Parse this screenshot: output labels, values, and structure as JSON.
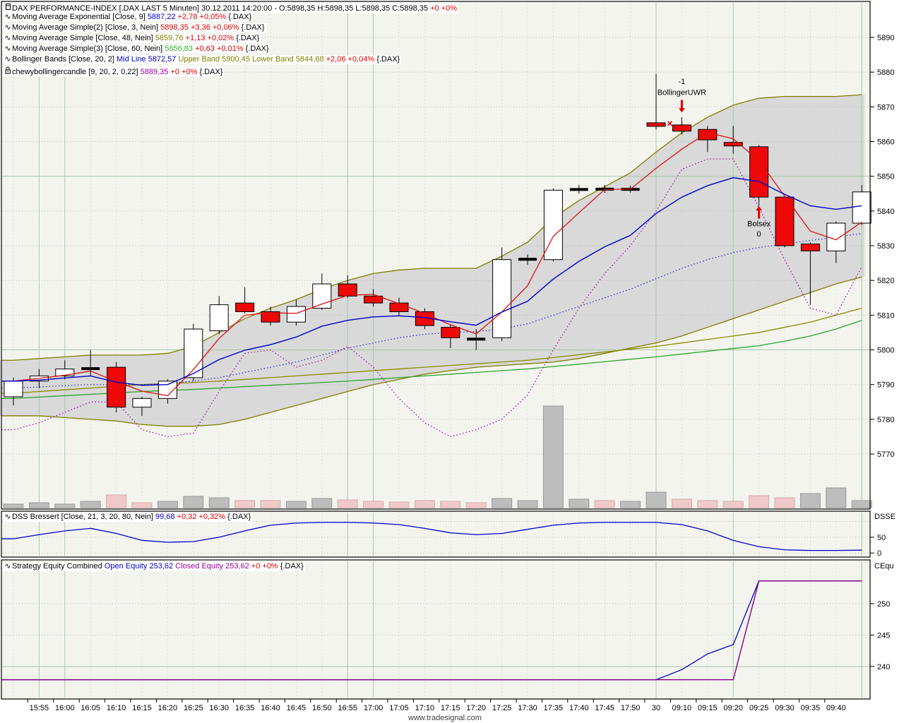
{
  "watermark": "www.tradesignal.com",
  "palette": {
    "black": "#000000",
    "blue": "#0000cc",
    "red": "#dd0000",
    "olive": "#808000",
    "green": "#2db52d",
    "purple": "#990099",
    "bg": "#f4f4ef",
    "axis_bg": "#ffffff",
    "gray_band": "#d9d9d9",
    "band_line": "#7e7e00",
    "sma48": "#8a8a00",
    "sma60": "#2aa52a",
    "ema9": "#0000cc",
    "sma3": "#dd1111",
    "bb_mid_dot": "#2222cc",
    "chewy_dot": "#a000a0",
    "candle_red": "#ee0808",
    "vol_gray": "#bdbdbd",
    "vol_gray_edge": "#9a9a9a",
    "vol_pink": "#f0caca",
    "vol_pink_edge": "#d8a8a8",
    "grid_dot": "#b8b8b8",
    "grid_bar_dot": "#cfcfcf",
    "grid_green": "#a8c8a8",
    "dss_line": "#0000cc",
    "eq_open": "#0000cc",
    "eq_closed": "#800080"
  },
  "legends": {
    "main": [
      {
        "icon": "chart-window-icon",
        "segments": [
          {
            "t": "DAX PERFORMANCE-INDEX [.DAX LAST 5 Minuten] 30.12.2011 14:20:00 - O:5898,35 H:5898,35 L:5898,35 C:5898,35 ",
            "c": "black"
          },
          {
            "t": "+0 +0%",
            "c": "red"
          }
        ]
      },
      {
        "icon": "wave-icon",
        "segments": [
          {
            "t": "Moving Average Exponential [Close, 9] ",
            "c": "black"
          },
          {
            "t": "5887,22 ",
            "c": "blue"
          },
          {
            "t": "+2,78 +0,05% ",
            "c": "red"
          },
          {
            "t": "{.DAX}",
            "c": "black"
          }
        ]
      },
      {
        "icon": "wave-icon",
        "segments": [
          {
            "t": "Moving Average Simple(2) [Close, 3, Nein] ",
            "c": "black"
          },
          {
            "t": "5898,35 ",
            "c": "red"
          },
          {
            "t": "+3,36 +0,06% ",
            "c": "red"
          },
          {
            "t": "{.DAX}",
            "c": "black"
          }
        ]
      },
      {
        "icon": "wave-icon",
        "segments": [
          {
            "t": "Moving Average Simple [Close, 48, Nein] ",
            "c": "black"
          },
          {
            "t": "5859,76 ",
            "c": "olive"
          },
          {
            "t": "+1,13 +0,02% ",
            "c": "red"
          },
          {
            "t": "{.DAX}",
            "c": "black"
          }
        ]
      },
      {
        "icon": "wave-icon",
        "segments": [
          {
            "t": "Moving Average Simple(3) [Close, 60, Nein] ",
            "c": "black"
          },
          {
            "t": "5856,83 ",
            "c": "green"
          },
          {
            "t": "+0,63 +0,01% ",
            "c": "red"
          },
          {
            "t": "{.DAX}",
            "c": "black"
          }
        ]
      },
      {
        "icon": "wave-icon",
        "segments": [
          {
            "t": "Bollinger Bands [Close, 20, 2] ",
            "c": "black"
          },
          {
            "t": "Mid Line 5872,57 ",
            "c": "blue"
          },
          {
            "t": "Upper Band 5900,45 ",
            "c": "olive"
          },
          {
            "t": "Lower Band 5844,68 ",
            "c": "olive"
          },
          {
            "t": "+2,06 +0,04% ",
            "c": "red"
          },
          {
            "t": "{.DAX}",
            "c": "black"
          }
        ]
      },
      {
        "icon": "lock-icon",
        "segments": [
          {
            "t": "chewybollingercandle [9, 20, 2, 0,22] ",
            "c": "black"
          },
          {
            "t": "5889,35 ",
            "c": "purple"
          },
          {
            "t": "+0 +0% ",
            "c": "red"
          },
          {
            "t": "{.DAX}",
            "c": "black"
          }
        ]
      }
    ],
    "dss": {
      "icon": "wave-icon",
      "segments": [
        {
          "t": "DSS Bressert [Close, 21, 3, 20, 80, Nein] ",
          "c": "black"
        },
        {
          "t": "99,68 ",
          "c": "blue"
        },
        {
          "t": "+0,32 +0,32% ",
          "c": "red"
        },
        {
          "t": "{.DAX}",
          "c": "black"
        }
      ]
    },
    "equity": {
      "icon": "wave-icon",
      "segments": [
        {
          "t": "Strategy Equity Combined ",
          "c": "black"
        },
        {
          "t": "Open Equity 253,62 ",
          "c": "blue"
        },
        {
          "t": "Closed Equity 253,62 ",
          "c": "purple"
        },
        {
          "t": "+0 +0% ",
          "c": "red"
        },
        {
          "t": "{.DAX}",
          "c": "black"
        }
      ]
    }
  },
  "axes": {
    "price_ticks": [
      5890,
      5880,
      5870,
      5860,
      5850,
      5840,
      5830,
      5820,
      5810,
      5800,
      5790,
      5780,
      5770
    ],
    "dss": {
      "name": "DSSE",
      "tick_values": [
        50,
        0
      ]
    },
    "equity": {
      "name": "CEqu",
      "tick_values": [
        250,
        245,
        240
      ]
    },
    "x_labels": [
      "15:55",
      "16:00",
      "16:05",
      "16:10",
      "16:15",
      "16:20",
      "16:25",
      "16:30",
      "16:35",
      "16:40",
      "16:45",
      "16:50",
      "16:55",
      "17:00",
      "17:05",
      "17:10",
      "17:15",
      "17:20",
      "17:25",
      "17:30",
      "17:35",
      "17:40",
      "17:45",
      "17:50",
      "30",
      "09:10",
      "09:15",
      "09:20",
      "09:25",
      "09:30",
      "09:35",
      "09:40"
    ]
  },
  "chart_data": {
    "type": "candlestick",
    "title": "DAX PERFORMANCE-INDEX .DAX 5 Minuten",
    "ylim_main": [
      5754,
      5899
    ],
    "session_break_bar": 25,
    "bars": [
      [
        "15:50",
        5786.5,
        5792,
        5784,
        5791,
        "w"
      ],
      [
        "15:55",
        5791,
        5794.5,
        5789,
        5792.5,
        "w"
      ],
      [
        "16:00",
        5792.5,
        5797,
        5791.5,
        5794.5,
        "w"
      ],
      [
        "16:05",
        5794.5,
        5800,
        5792.5,
        5794.7,
        "d"
      ],
      [
        "16:10",
        5795,
        5796.5,
        5782,
        5783.5,
        "r"
      ],
      [
        "16:15",
        5783.5,
        5786.5,
        5781,
        5786,
        "w"
      ],
      [
        "16:20",
        5786,
        5791.5,
        5784.5,
        5791,
        "w"
      ],
      [
        "16:25",
        5792,
        5807.5,
        5791,
        5806,
        "w"
      ],
      [
        "16:30",
        5805.5,
        5815.5,
        5804.5,
        5813,
        "w"
      ],
      [
        "16:35",
        5813.5,
        5818,
        5810.5,
        5811,
        "r"
      ],
      [
        "16:40",
        5811,
        5812.5,
        5807,
        5808,
        "r"
      ],
      [
        "16:45",
        5808,
        5814.5,
        5807,
        5812.5,
        "w"
      ],
      [
        "16:50",
        5812,
        5822,
        5811.5,
        5819,
        "w"
      ],
      [
        "16:55",
        5819,
        5821.5,
        5815,
        5815.5,
        "r"
      ],
      [
        "17:00",
        5815.5,
        5817.5,
        5812.5,
        5813.5,
        "r"
      ],
      [
        "17:05",
        5813.5,
        5815,
        5810,
        5811,
        "r"
      ],
      [
        "17:10",
        5811,
        5812,
        5806,
        5807,
        "r"
      ],
      [
        "17:15",
        5806.5,
        5807.5,
        5800.5,
        5803.5,
        "r"
      ],
      [
        "17:20",
        5803,
        5806,
        5800,
        5803.2,
        "d"
      ],
      [
        "17:25",
        5803.5,
        5829.5,
        5802.5,
        5826,
        "w"
      ],
      [
        "17:30",
        5826,
        5827.5,
        5824.5,
        5826.2,
        "d"
      ],
      [
        "17:35",
        5826,
        5846.5,
        5825.5,
        5846,
        "w"
      ],
      [
        "17:40",
        5846.2,
        5847.5,
        5845,
        5846.2,
        "d"
      ],
      [
        "17:45",
        5846.2,
        5847.5,
        5845.2,
        5846.4,
        "d"
      ],
      [
        "17:50",
        5846.2,
        5847.3,
        5845.3,
        5846.3,
        "d"
      ],
      [
        "09:05",
        5865.5,
        5879.5,
        5863.5,
        5864.3,
        "rd"
      ],
      [
        "09:10",
        5864.8,
        5867,
        5862,
        5863,
        "r"
      ],
      [
        "09:15",
        5863.5,
        5864.5,
        5857,
        5860.5,
        "r"
      ],
      [
        "09:20",
        5859.5,
        5864.5,
        5856.5,
        5859,
        "rd"
      ],
      [
        "09:25",
        5858.5,
        5859,
        5841.5,
        5844,
        "r"
      ],
      [
        "09:30",
        5844,
        5844.5,
        5829.5,
        5830,
        "r"
      ],
      [
        "09:35",
        5830.5,
        5831,
        5813,
        5828.5,
        "r"
      ],
      [
        "09:40",
        5828.5,
        5837,
        5825,
        5836.5,
        "w"
      ],
      [
        "09:45",
        5836.5,
        5847.5,
        5836,
        5845.5,
        "w"
      ]
    ],
    "overlays": {
      "sma3_red": [
        5791,
        5791.8,
        5792.7,
        5793.9,
        5790.9,
        5788.1,
        5786.8,
        5794.3,
        5803.3,
        5810,
        5810.7,
        5810.5,
        5813.2,
        5815.7,
        5816,
        5813.3,
        5810.5,
        5807.2,
        5804.6,
        5810.9,
        5818.5,
        5832.7,
        5839.5,
        5846.2,
        5846.3,
        5852.3,
        5857.8,
        5862.6,
        5860.8,
        5854.5,
        5844.3,
        5834.2,
        5831.7,
        5836.8
      ],
      "ema9_blue": [
        5791,
        5791.3,
        5791.9,
        5792.5,
        5790.7,
        5789.8,
        5790,
        5793.2,
        5797.2,
        5799.9,
        5801.5,
        5803.7,
        5806.8,
        5808.5,
        5809.5,
        5809.8,
        5809.3,
        5808.1,
        5807.1,
        5810.9,
        5814,
        5820.4,
        5825.5,
        5829.7,
        5833,
        5839.3,
        5844,
        5847.3,
        5849.6,
        5848.5,
        5844.8,
        5841.5,
        5840.5,
        5841.5
      ],
      "bb_mid_dotted_blue": [
        5789,
        5789.3,
        5789.7,
        5790,
        5790,
        5790,
        5790.3,
        5791,
        5792,
        5793.5,
        5795,
        5796.5,
        5798.5,
        5800.5,
        5802,
        5803.5,
        5804.5,
        5805,
        5805.3,
        5806,
        5807.5,
        5810,
        5812.5,
        5815,
        5817.5,
        5820.5,
        5823.5,
        5826,
        5828,
        5829.5,
        5830.5,
        5831.5,
        5832.5,
        5833.5
      ],
      "bb_upper_olive": [
        5797,
        5797.5,
        5798,
        5798.5,
        5798.5,
        5798.5,
        5799,
        5801,
        5805,
        5809,
        5812,
        5814.5,
        5817.5,
        5820,
        5822,
        5823,
        5823.5,
        5823.5,
        5823.5,
        5827,
        5831,
        5838,
        5843,
        5847,
        5851,
        5857,
        5862.5,
        5867,
        5870.5,
        5872.5,
        5873,
        5873,
        5873,
        5873.5
      ],
      "bb_lower_olive": [
        5781,
        5781,
        5780.5,
        5780,
        5779.5,
        5778.5,
        5778,
        5778,
        5778.5,
        5780,
        5782,
        5784,
        5786,
        5788,
        5790,
        5791.5,
        5793,
        5794,
        5795,
        5795.5,
        5796,
        5796.5,
        5797.5,
        5799,
        5800.5,
        5802,
        5804,
        5806.5,
        5809,
        5811.5,
        5814,
        5816.5,
        5819,
        5821
      ],
      "sma48_olive": [
        5787.5,
        5788,
        5788.5,
        5789,
        5789.5,
        5790,
        5790.3,
        5790.6,
        5791,
        5791.5,
        5792,
        5792.5,
        5793,
        5793.5,
        5794,
        5794.5,
        5795,
        5795.5,
        5796,
        5796.5,
        5797,
        5797.8,
        5798.6,
        5799.4,
        5800.2,
        5801,
        5802,
        5803,
        5804,
        5805,
        5806.5,
        5808,
        5810,
        5812
      ],
      "sma60_green": [
        5786,
        5786.4,
        5786.8,
        5787.2,
        5787.6,
        5788,
        5788.3,
        5788.6,
        5789,
        5789.4,
        5789.8,
        5790.2,
        5790.6,
        5791,
        5791.5,
        5792,
        5792.5,
        5793,
        5793.5,
        5794,
        5794.5,
        5795.2,
        5795.9,
        5796.6,
        5797.3,
        5798,
        5798.8,
        5799.6,
        5800.4,
        5801.2,
        5802.5,
        5804,
        5806,
        5808.5
      ],
      "chewy_dotted_purple": [
        5777,
        5779,
        5782,
        5785,
        5785,
        5777,
        5775,
        5776,
        5788,
        5799,
        5800,
        5795,
        5797,
        5801,
        5795,
        5786,
        5779,
        5775,
        5777,
        5780,
        5787,
        5800,
        5812,
        5822,
        5830,
        5840,
        5852,
        5855,
        5855,
        5841,
        5826,
        5812,
        5810,
        5824
      ]
    },
    "volume": {
      "heights": [
        5,
        7,
        5,
        9,
        18,
        7,
        9,
        16,
        14,
        10,
        10,
        9,
        13,
        11,
        9,
        8,
        10,
        9,
        7,
        13,
        10,
        144,
        12,
        10,
        9,
        22,
        12,
        10,
        9,
        17,
        14,
        20,
        28,
        10
      ],
      "colors": [
        "g",
        "g",
        "g",
        "g",
        "p",
        "p",
        "g",
        "g",
        "g",
        "p",
        "p",
        "g",
        "g",
        "p",
        "p",
        "p",
        "p",
        "p",
        "p",
        "g",
        "g",
        "g",
        "g",
        "p",
        "g",
        "g",
        "p",
        "p",
        "p",
        "p",
        "p",
        "g",
        "g",
        "g"
      ]
    },
    "indicators": {
      "dss_bressert": [
        45,
        58,
        70,
        78,
        62,
        40,
        34,
        36,
        50,
        70,
        88,
        95,
        97,
        97,
        95,
        90,
        78,
        64,
        58,
        62,
        75,
        88,
        95,
        97,
        97,
        97,
        90,
        70,
        40,
        20,
        10,
        8,
        8,
        9
      ],
      "equity_open": [
        237.9,
        237.9,
        237.9,
        237.9,
        237.9,
        237.9,
        237.9,
        237.9,
        237.9,
        237.9,
        237.9,
        237.9,
        237.9,
        237.9,
        237.9,
        237.9,
        237.9,
        237.9,
        237.9,
        237.9,
        237.9,
        237.9,
        237.9,
        237.9,
        237.9,
        237.9,
        239.5,
        242,
        243.5,
        253.62,
        253.62,
        253.62,
        253.62,
        253.62
      ],
      "equity_closed": [
        237.9,
        237.9,
        237.9,
        237.9,
        237.9,
        237.9,
        237.9,
        237.9,
        237.9,
        237.9,
        237.9,
        237.9,
        237.9,
        237.9,
        237.9,
        237.9,
        237.9,
        237.9,
        237.9,
        237.9,
        237.9,
        237.9,
        237.9,
        237.9,
        237.9,
        237.9,
        237.9,
        237.9,
        237.9,
        253.62,
        253.62,
        253.62,
        253.62,
        253.62
      ]
    },
    "gridlines": {
      "h_solid_prices": [
        5850,
        5800
      ],
      "v_solid_bars": [
        1,
        2,
        13,
        14,
        25,
        28,
        33
      ],
      "dss_dotted": [
        100,
        50,
        0
      ],
      "equity_dotted": [
        250,
        245
      ],
      "equity_h_solid": [
        240
      ]
    },
    "annotations": [
      {
        "type": "text",
        "text": "-1",
        "bar": 26,
        "price": 5876.6
      },
      {
        "type": "text",
        "text": "BollingerUWR",
        "bar": 26,
        "price": 5873.4
      },
      {
        "type": "arrow-down",
        "bar": 26,
        "from_price": 5872.0,
        "to_price": 5868.4
      },
      {
        "type": "arrow-up",
        "bar": 29,
        "from_price": 5837.8,
        "to_price": 5841.4
      },
      {
        "type": "text",
        "text": "Bolsex",
        "bar": 29,
        "price": 5835.6
      },
      {
        "type": "text",
        "text": "0",
        "bar": 29,
        "price": 5832.6
      },
      {
        "type": "pattern-mark",
        "bar": 26,
        "price": 5865.2
      }
    ]
  }
}
